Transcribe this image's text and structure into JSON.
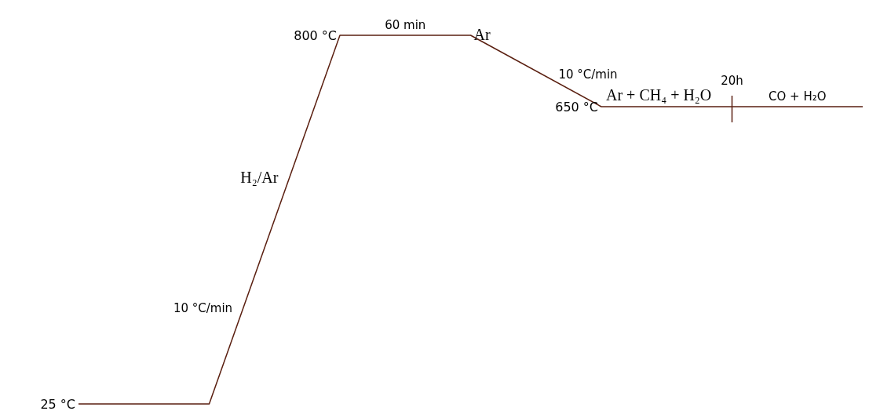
{
  "chart_data": {
    "type": "line",
    "categories": [
      null,
      null,
      null,
      null,
      null,
      null,
      null
    ],
    "values": [
      25,
      25,
      800,
      800,
      650,
      650,
      650
    ],
    "value_labels": [
      "25 °C",
      null,
      "800 °C",
      null,
      "650 °C",
      null,
      null
    ],
    "color": "#5a1f10",
    "annotations": [
      "60 min",
      "Ar",
      "10 °C/min",
      "H₂/Ar",
      "10 °C/min",
      "Ar + CH₄ + H₂O",
      "20h",
      "CO + H₂O"
    ]
  }
}
